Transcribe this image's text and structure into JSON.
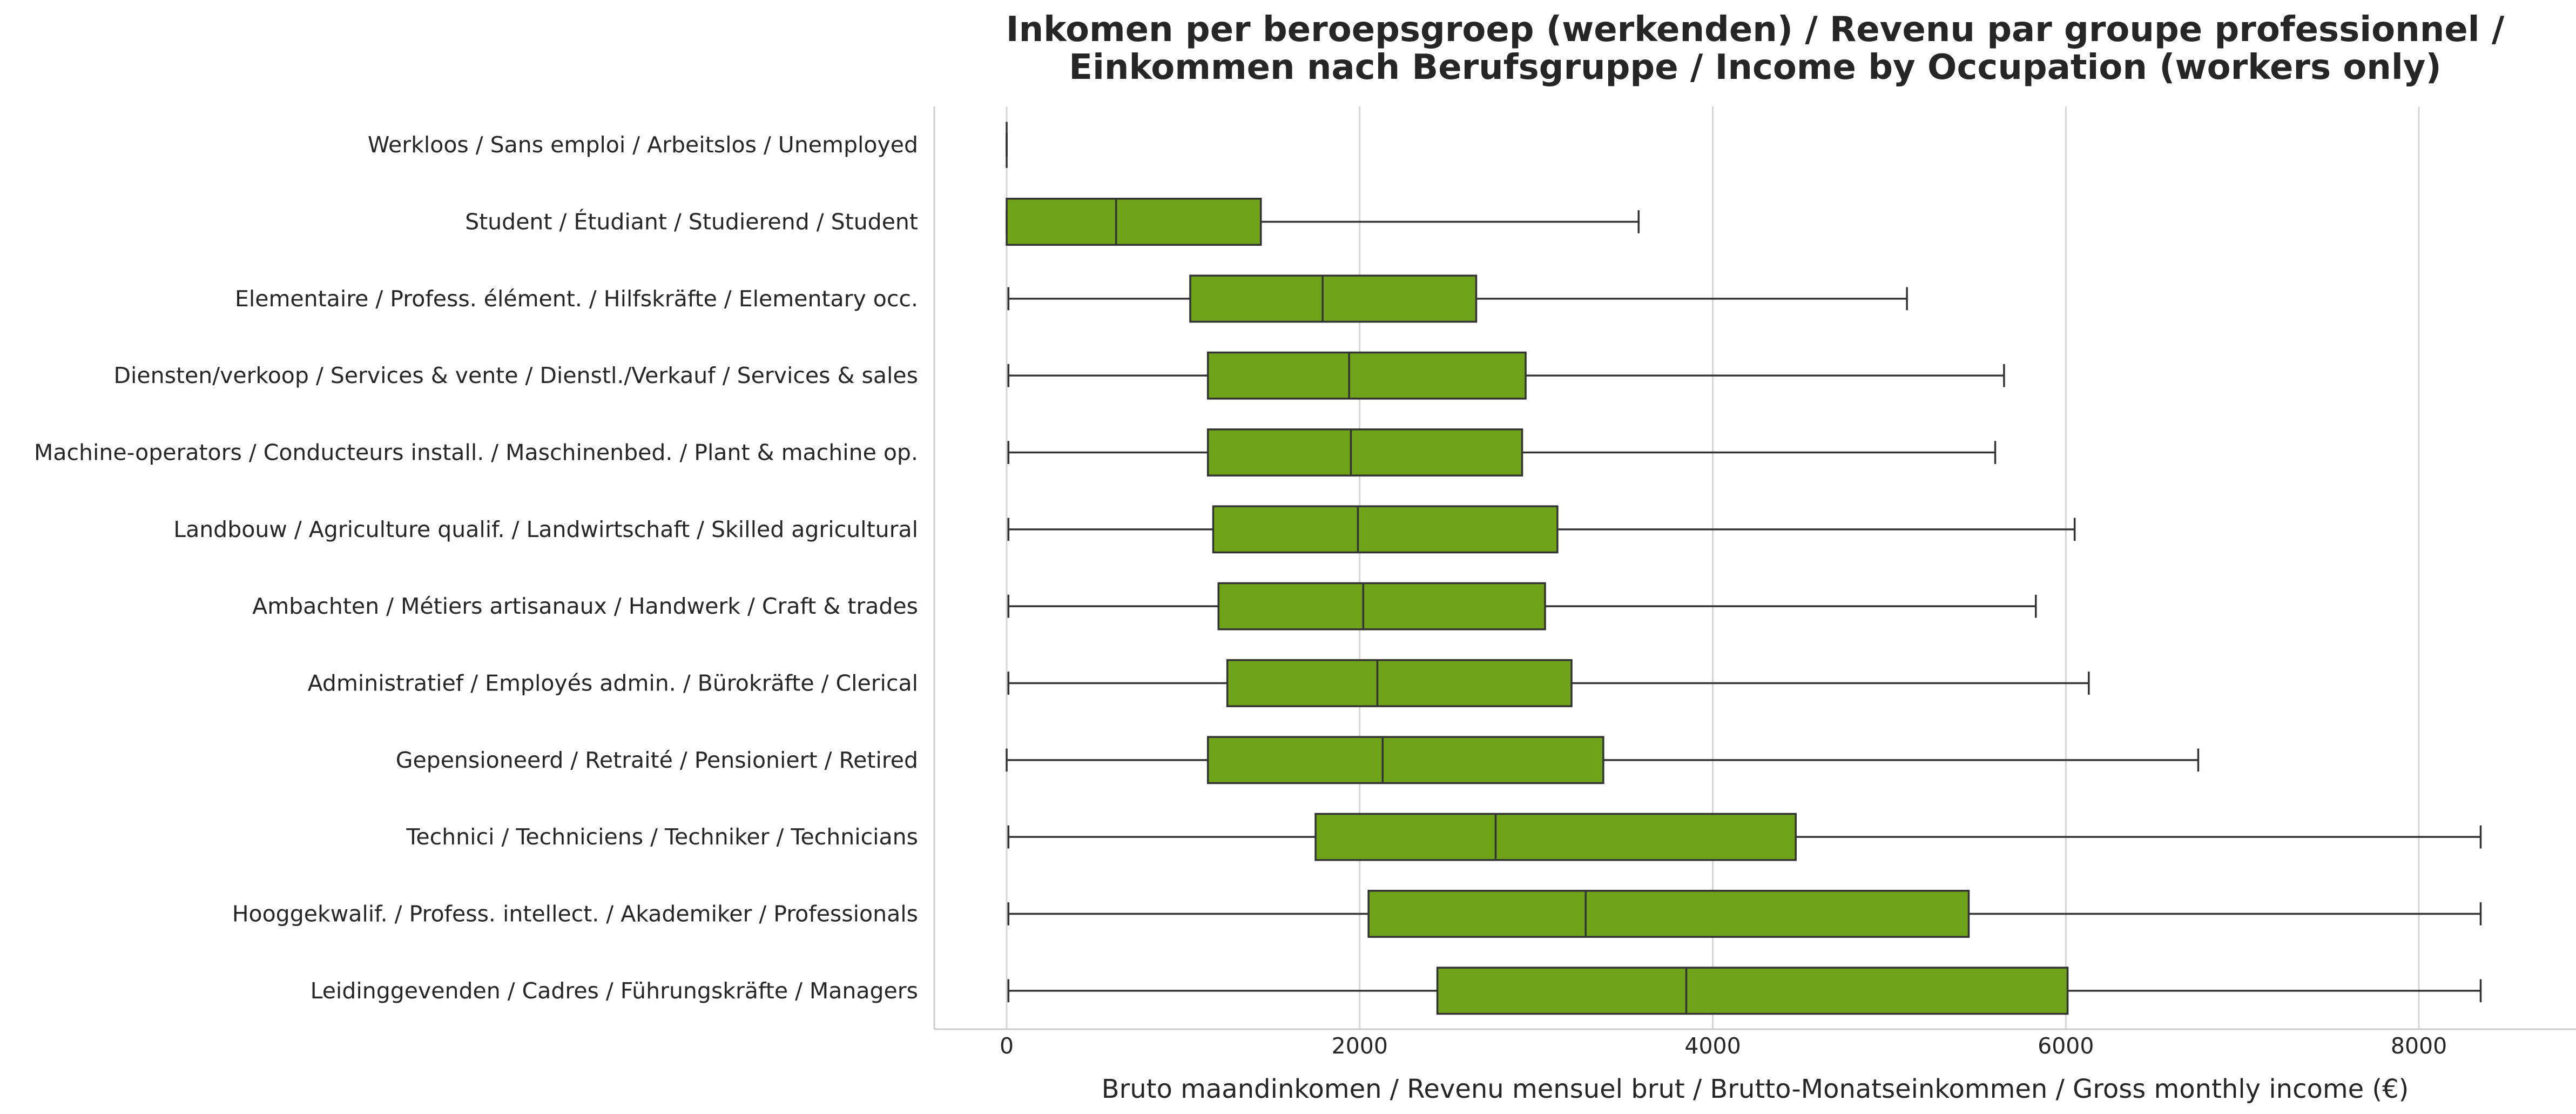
{
  "chart_data": {
    "type": "boxplot",
    "orientation": "horizontal",
    "title": [
      "Inkomen per beroepsgroep (werkenden) / Revenu par groupe professionnel /",
      "Einkommen nach Berufsgruppe / Income by Occupation (workers only)"
    ],
    "xlabel": "Bruto maandinkomen / Revenu mensuel brut / Brutto-Monatseinkommen / Gross monthly income (€)",
    "ylabel": "",
    "xlim": [
      -410,
      8890
    ],
    "xticks": [
      0,
      2000,
      4000,
      6000,
      8000
    ],
    "xtick_labels": [
      "0",
      "2000",
      "4000",
      "6000",
      "8000"
    ],
    "grid": "vertical",
    "box_color": "#6fa31a",
    "line_color": "#333333",
    "categories": [
      "Werkloos / Sans emploi / Arbeitslos / Unemployed",
      "Student / Étudiant / Studierend / Student",
      "Elementaire / Profess. élément. / Hilfskräfte / Elementary occ.",
      "Diensten/verkoop / Services & vente / Dienstl./Verkauf / Services & sales",
      "Machine-operators / Conducteurs install. / Maschinenbed. / Plant & machine op.",
      "Landbouw / Agriculture qualif. / Landwirtschaft / Skilled agricultural",
      "Ambachten / Métiers artisanaux / Handwerk / Craft & trades",
      "Administratief / Employés admin. / Bürokräfte / Clerical",
      "Gepensioneerd / Retraité / Pensioniert / Retired",
      "Technici / Techniciens / Techniker / Technicians",
      "Hooggekwalif. / Profess. intellect. / Akademiker / Professionals",
      "Leidinggevenden / Cadres / Führungskräfte / Managers"
    ],
    "boxes": [
      {
        "whisker_low": 0,
        "q1": 0,
        "median": 0,
        "q3": 0,
        "whisker_high": 0
      },
      {
        "whisker_low": 0,
        "q1": 0,
        "median": 620,
        "q3": 1440,
        "whisker_high": 3580
      },
      {
        "whisker_low": 10,
        "q1": 1040,
        "median": 1790,
        "q3": 2660,
        "whisker_high": 5100
      },
      {
        "whisker_low": 10,
        "q1": 1140,
        "median": 1940,
        "q3": 2940,
        "whisker_high": 5650
      },
      {
        "whisker_low": 10,
        "q1": 1140,
        "median": 1950,
        "q3": 2920,
        "whisker_high": 5600
      },
      {
        "whisker_low": 10,
        "q1": 1170,
        "median": 1990,
        "q3": 3120,
        "whisker_high": 6050
      },
      {
        "whisker_low": 10,
        "q1": 1200,
        "median": 2020,
        "q3": 3050,
        "whisker_high": 5830
      },
      {
        "whisker_low": 10,
        "q1": 1250,
        "median": 2100,
        "q3": 3200,
        "whisker_high": 6130
      },
      {
        "whisker_low": 0,
        "q1": 1140,
        "median": 2130,
        "q3": 3380,
        "whisker_high": 6750
      },
      {
        "whisker_low": 10,
        "q1": 1750,
        "median": 2770,
        "q3": 4470,
        "whisker_high": 8350
      },
      {
        "whisker_low": 10,
        "q1": 2050,
        "median": 3280,
        "q3": 5450,
        "whisker_high": 8350
      },
      {
        "whisker_low": 10,
        "q1": 2440,
        "median": 3850,
        "q3": 6010,
        "whisker_high": 8350
      }
    ]
  }
}
